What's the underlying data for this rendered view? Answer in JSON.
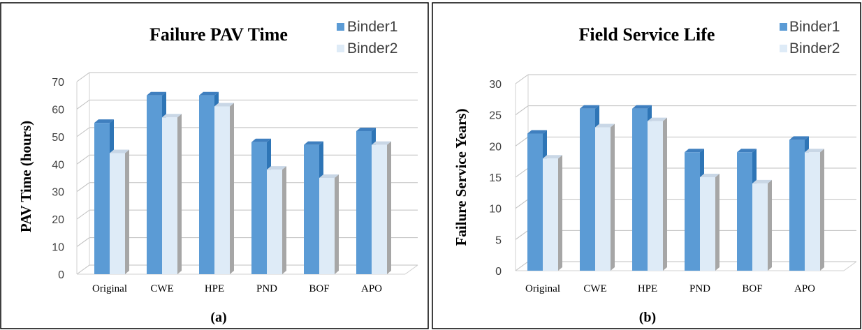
{
  "chart_data": [
    {
      "type": "bar",
      "title": "Failure PAV Time",
      "ylabel": "PAV Time (hours)",
      "xlabel": "",
      "caption": "(a)",
      "categories": [
        "Original",
        "CWE",
        "HPE",
        "PND",
        "BOF",
        "APO"
      ],
      "ylim": [
        0,
        70
      ],
      "yticks": [
        0,
        10,
        20,
        30,
        40,
        50,
        60,
        70
      ],
      "grid": true,
      "legend_position": "top-right",
      "style": "3d-clustered-column",
      "series": [
        {
          "name": "Binder1",
          "values": [
            55,
            65,
            65,
            48,
            47,
            52
          ]
        },
        {
          "name": "Binder2",
          "values": [
            44,
            57,
            61,
            38,
            35,
            47
          ]
        }
      ]
    },
    {
      "type": "bar",
      "title": "Field Service Life",
      "ylabel": "Failure Service Years)",
      "xlabel": "",
      "caption": "(b)",
      "categories": [
        "Original",
        "CWE",
        "HPE",
        "PND",
        "BOF",
        "APO"
      ],
      "ylim": [
        0,
        30
      ],
      "yticks": [
        0,
        5,
        10,
        15,
        20,
        25,
        30
      ],
      "grid": true,
      "legend_position": "top-right",
      "style": "3d-clustered-column",
      "series": [
        {
          "name": "Binder1",
          "values": [
            22,
            26,
            26,
            19,
            19,
            21
          ]
        },
        {
          "name": "Binder2",
          "values": [
            18,
            23,
            24,
            15,
            14,
            19
          ]
        }
      ]
    }
  ],
  "colors": {
    "binder1_front": "#5B9BD5",
    "binder1_side": "#2E75B6",
    "binder1_top": "#3F7FBF",
    "binder2_front": "#DEEBF7",
    "binder2_side": "#A6A6A6",
    "binder2_top": "#C9D7E6",
    "grid": "#BFBFBF",
    "axis": "#D0D0D0",
    "frame": "#000000"
  }
}
